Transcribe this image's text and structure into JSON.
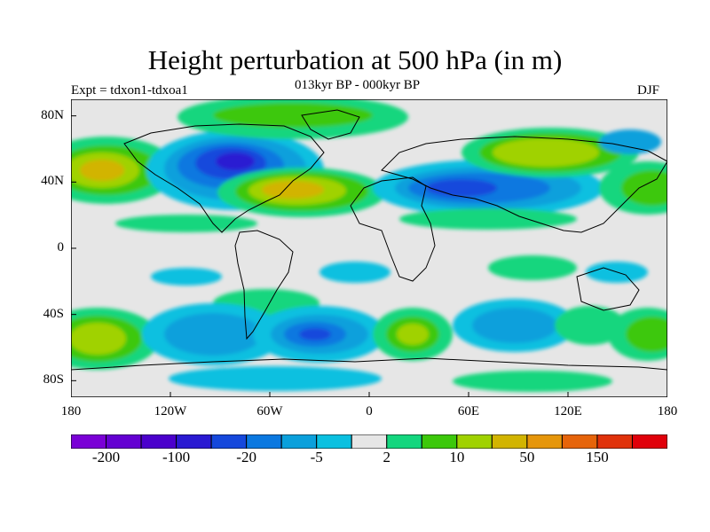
{
  "title": "Height perturbation at 500 hPa (in m)",
  "experiment_label": "Expt = tdxon1-tdxoa1",
  "period_label": "013kyr BP - 000kyr BP",
  "season_label": "DJF",
  "y_ticks": [
    {
      "label": "80N",
      "lat": 80
    },
    {
      "label": "40N",
      "lat": 40
    },
    {
      "label": "0",
      "lat": 0
    },
    {
      "label": "40S",
      "lat": -40
    },
    {
      "label": "80S",
      "lat": -80
    }
  ],
  "x_ticks": [
    {
      "label": "180",
      "lon": -180
    },
    {
      "label": "120W",
      "lon": -120
    },
    {
      "label": "60W",
      "lon": -60
    },
    {
      "label": "0",
      "lon": 0
    },
    {
      "label": "60E",
      "lon": 60
    },
    {
      "label": "120E",
      "lon": 120
    },
    {
      "label": "180",
      "lon": 180
    }
  ],
  "colorbar": {
    "colors": [
      "#7a00d6",
      "#6400d2",
      "#4b00cc",
      "#2a1ad2",
      "#1548dc",
      "#0a78e0",
      "#0aa0dc",
      "#0ac0e0",
      "#e6e6e6",
      "#14d67e",
      "#3cc80a",
      "#a0d200",
      "#d2b400",
      "#e6960a",
      "#e6640a",
      "#e0320a",
      "#e0000a"
    ],
    "labels": [
      {
        "text": "-200",
        "index": 1
      },
      {
        "text": "-100",
        "index": 3
      },
      {
        "text": "-20",
        "index": 5
      },
      {
        "text": "-5",
        "index": 7
      },
      {
        "text": "2",
        "index": 9
      },
      {
        "text": "10",
        "index": 11
      },
      {
        "text": "50",
        "index": 13
      },
      {
        "text": "150",
        "index": 15
      }
    ]
  }
}
